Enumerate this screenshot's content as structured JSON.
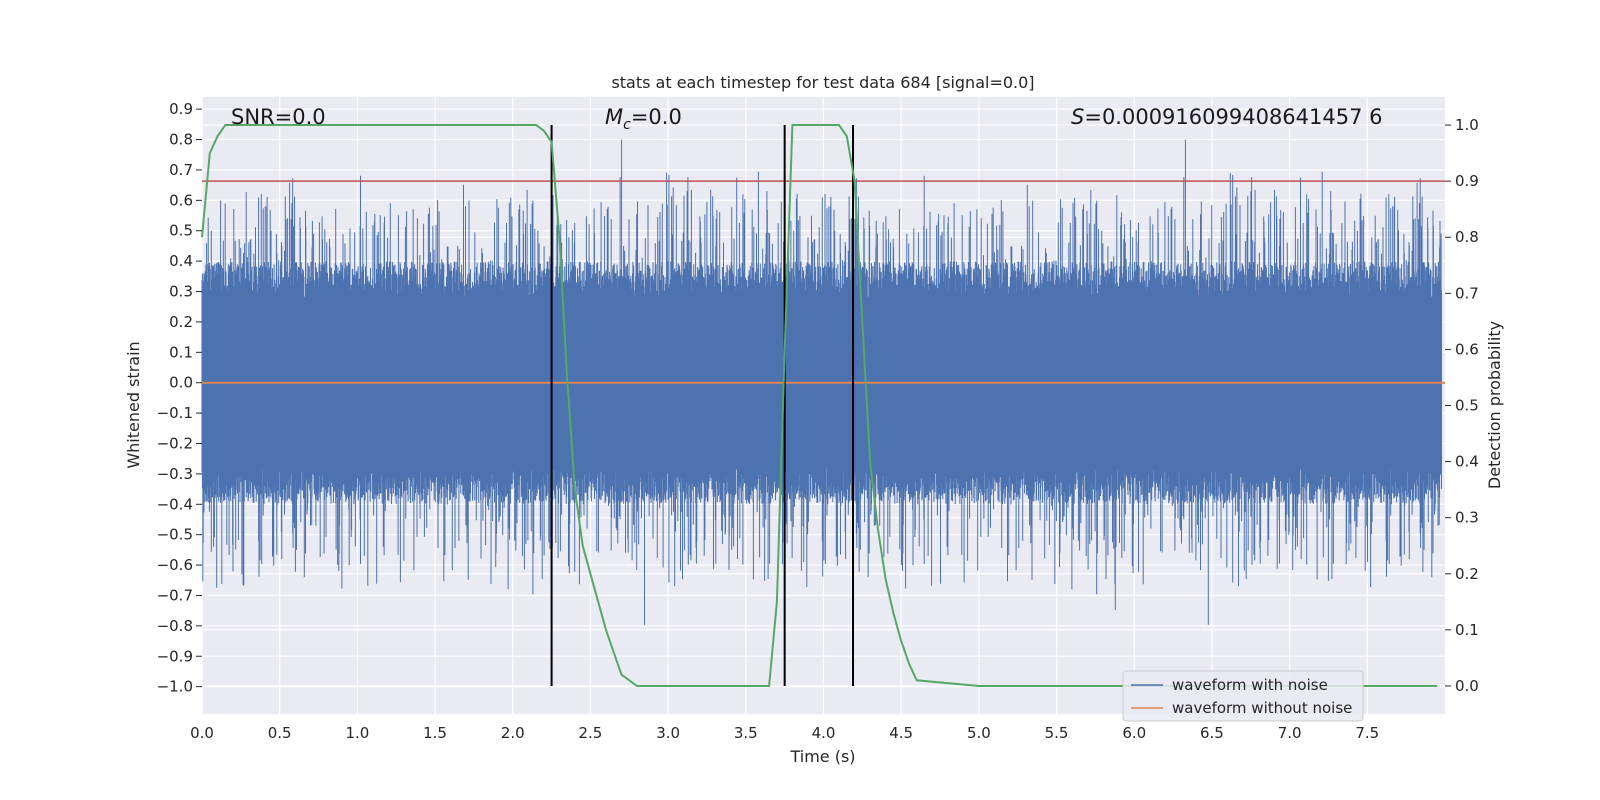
{
  "chart_data": {
    "type": "line",
    "title": "stats at each timestep for test data 684 [signal=0.0]",
    "xlabel": "Time (s)",
    "ylabel": "Whitened strain",
    "y2label": "Detection probability",
    "xlim": [
      0.0,
      8.0
    ],
    "ylim": [
      -1.09,
      0.94
    ],
    "y2lim": [
      -0.05,
      1.05
    ],
    "xticks": [
      "0.0",
      "0.5",
      "1.0",
      "1.5",
      "2.0",
      "2.5",
      "3.0",
      "3.5",
      "4.0",
      "4.5",
      "5.0",
      "5.5",
      "6.0",
      "6.5",
      "7.0",
      "7.5"
    ],
    "yticks": [
      "0.9",
      "0.8",
      "0.7",
      "0.6",
      "0.5",
      "0.4",
      "0.3",
      "0.2",
      "0.1",
      "0.0",
      "−0.1",
      "−0.2",
      "−0.3",
      "−0.4",
      "−0.5",
      "−0.6",
      "−0.7",
      "−0.8",
      "−0.9",
      "−1.0"
    ],
    "y2ticks": [
      "1.0",
      "0.9",
      "0.8",
      "0.7",
      "0.6",
      "0.5",
      "0.4",
      "0.3",
      "0.2",
      "0.1",
      "0.0"
    ],
    "grid": true,
    "legend_position": "lower-right",
    "annotations": {
      "snr": "SNR=0.0",
      "mc_symbol": "M",
      "mc_sub": "c",
      "mc_value": "=0.0",
      "s_symbol": "S",
      "s_value": "=0.000916099408641457 6"
    },
    "threshold": {
      "value": 0.9,
      "axis": "y2",
      "color": "#c44e52"
    },
    "vertical_lines": [
      2.25,
      3.75,
      4.19
    ],
    "series": [
      {
        "name": "waveform with noise",
        "color": "#4c72b0",
        "axis": "y",
        "description_stats": {
          "core_abs": 0.28,
          "typical_peak": 0.5,
          "max": 0.85,
          "min": -0.86
        }
      },
      {
        "name": "waveform without noise",
        "color": "#dd8452",
        "axis": "y",
        "x": [
          0.0,
          8.0
        ],
        "y": [
          0.0,
          0.0
        ]
      },
      {
        "name": "",
        "color": "#55a868",
        "axis": "y2",
        "x": [
          0.0,
          0.05,
          0.1,
          0.15,
          0.2,
          0.3,
          0.5,
          1.0,
          1.5,
          2.0,
          2.15,
          2.2,
          2.25,
          2.3,
          2.35,
          2.4,
          2.45,
          2.5,
          2.55,
          2.6,
          2.65,
          2.7,
          2.75,
          2.8,
          3.0,
          3.5,
          3.65,
          3.7,
          3.75,
          3.8,
          3.85,
          4.0,
          4.1,
          4.15,
          4.2,
          4.25,
          4.3,
          4.35,
          4.4,
          4.45,
          4.5,
          4.55,
          4.6,
          5.0,
          6.0,
          7.0,
          7.5,
          7.95
        ],
        "y": [
          0.8,
          0.95,
          0.98,
          1.0,
          1.0,
          1.0,
          1.0,
          1.0,
          1.0,
          1.0,
          1.0,
          0.99,
          0.97,
          0.8,
          0.55,
          0.35,
          0.25,
          0.2,
          0.15,
          0.1,
          0.06,
          0.02,
          0.01,
          0.0,
          0.0,
          0.0,
          0.0,
          0.15,
          0.6,
          1.0,
          1.0,
          1.0,
          1.0,
          0.98,
          0.9,
          0.65,
          0.4,
          0.28,
          0.19,
          0.13,
          0.08,
          0.04,
          0.01,
          0.0,
          0.0,
          0.0,
          0.0,
          0.0
        ]
      }
    ]
  }
}
